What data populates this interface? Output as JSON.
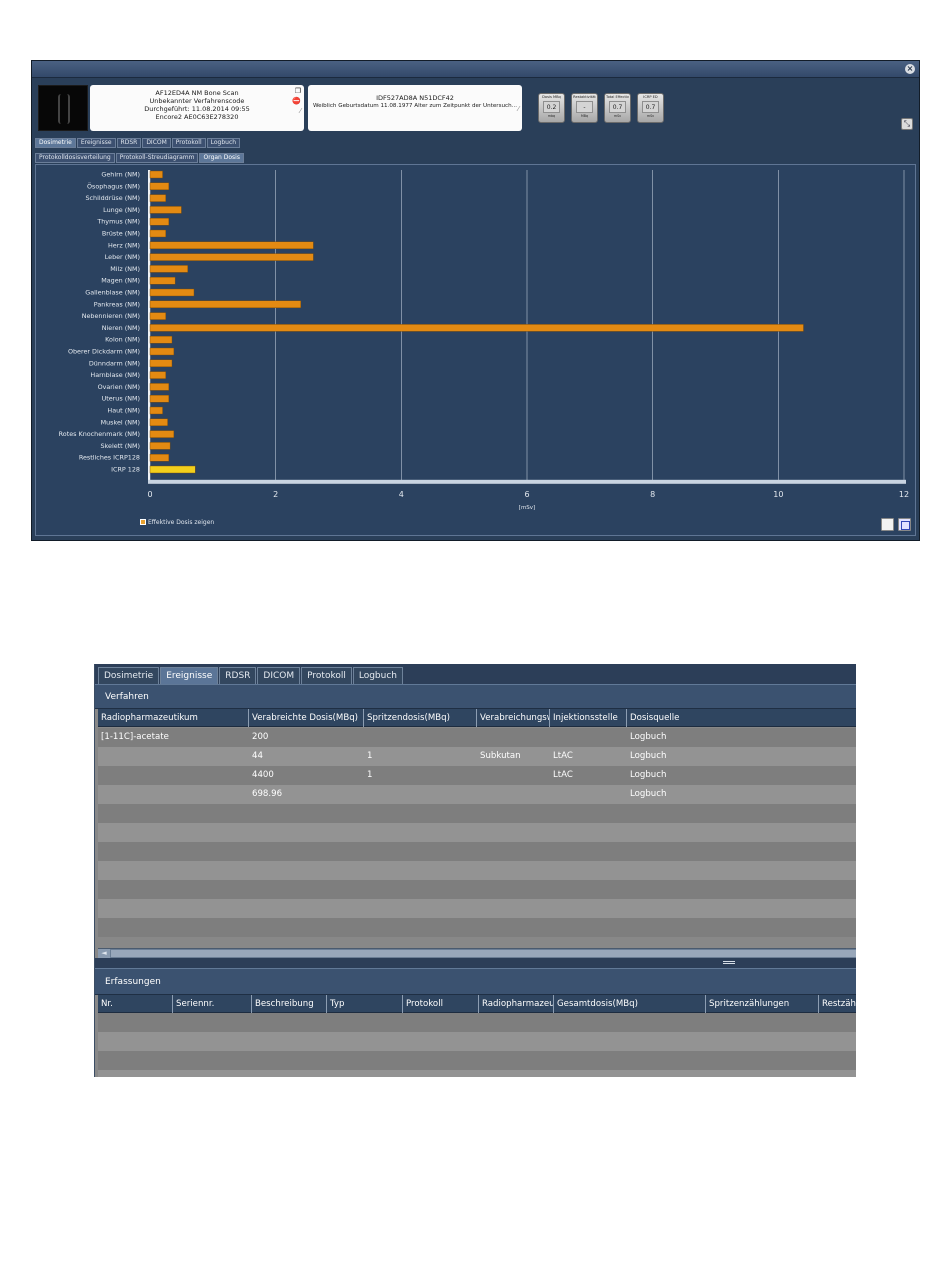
{
  "app": {
    "close_glyph": "×",
    "expand_glyph": "⤡"
  },
  "study": {
    "id_line": "AF12ED4A  NM  Bone Scan",
    "procedure_code": "Unbekannter Verfahrenscode",
    "performed": "Durchgeführt: 11.08.2014 09:55",
    "device": "Encore2 AE0C63E278320",
    "icons": [
      "page-icon",
      "stop-icon",
      "paperclip-icon"
    ]
  },
  "patient": {
    "id_line": "IDF527AD8A  N51DCF42",
    "details": "Weiblich  Geburtsdatum 11.08.1977  Alter zum Zeitpunkt der Untersuch...",
    "icon": "paperclip-icon"
  },
  "metrics": [
    {
      "label": "Dosis MBq",
      "value": "0.2",
      "unit": "mbq"
    },
    {
      "label": "Restaktivität",
      "value": "-",
      "unit": "MBq"
    },
    {
      "label": "Total Effectiv",
      "value": "0.7",
      "unit": "mSv"
    },
    {
      "label": "ICRP ED",
      "value": "0.7",
      "unit": "mSv"
    }
  ],
  "tabs": [
    "Dosimetrie",
    "Ereignisse",
    "RDSR",
    "DICOM",
    "Protokoll",
    "Logbuch"
  ],
  "tabs_active_1": 0,
  "subtabs": [
    "Protokolldosisverteilung",
    "Protokoll-Streudiagramm",
    "Organ Dosis"
  ],
  "subtabs_active": 2,
  "effective_dose_label": "Effektive Dosis zeigen",
  "chart_data": {
    "type": "bar",
    "orientation": "horizontal",
    "categories": [
      "Gehirn (NM)",
      "Ösophagus (NM)",
      "Schilddrüse (NM)",
      "Lunge (NM)",
      "Thymus (NM)",
      "Brüste (NM)",
      "Herz (NM)",
      "Leber (NM)",
      "Milz (NM)",
      "Magen (NM)",
      "Gallenblase (NM)",
      "Pankreas (NM)",
      "Nebennieren (NM)",
      "Nieren (NM)",
      "Kolon (NM)",
      "Oberer Dickdarm (NM)",
      "Dünndarm (NM)",
      "Harnblase (NM)",
      "Ovarien (NM)",
      "Uterus (NM)",
      "Haut (NM)",
      "Muskel (NM)",
      "Rotes Knochenmark (NM)",
      "Skelett (NM)",
      "Restliches ICRP128",
      "ICRP 128"
    ],
    "values": [
      0.2,
      0.3,
      0.25,
      0.5,
      0.3,
      0.25,
      2.6,
      2.6,
      0.6,
      0.4,
      0.7,
      2.4,
      0.25,
      10.4,
      0.35,
      0.38,
      0.35,
      0.25,
      0.3,
      0.3,
      0.2,
      0.28,
      0.38,
      0.32,
      0.3,
      0.72
    ],
    "highlight_index": 25,
    "xlim": [
      0,
      12
    ],
    "xticks": [
      0,
      2,
      4,
      6,
      8,
      10,
      12
    ],
    "xlabel": "[mSv]",
    "grid": true,
    "colors": {
      "bar": "#e38a12",
      "highlight": "#f2cf1c",
      "grid": "#b9c6d6"
    }
  },
  "verfahren": {
    "title": "Verfahren",
    "columns": [
      "Radiopharmazeutikum",
      "Verabreichte Dosis(MBq)",
      "Spritzendosis(MBq)",
      "Verabreichungsw",
      "Injektionsstelle",
      "Dosisquelle"
    ],
    "rows": [
      [
        "[1-11C]-acetate",
        "200",
        "",
        "",
        "",
        "Logbuch"
      ],
      [
        "",
        "44",
        "1",
        "Subkutan",
        "LtAC",
        "Logbuch"
      ],
      [
        "",
        "4400",
        "1",
        "",
        "LtAC",
        "Logbuch"
      ],
      [
        "",
        "698.96",
        "",
        "",
        "",
        "Logbuch"
      ],
      [
        "",
        "",
        "",
        "",
        "",
        ""
      ],
      [
        "",
        "",
        "",
        "",
        "",
        ""
      ],
      [
        "",
        "",
        "",
        "",
        "",
        ""
      ],
      [
        "",
        "",
        "",
        "",
        "",
        ""
      ],
      [
        "",
        "",
        "",
        "",
        "",
        ""
      ],
      [
        "",
        "",
        "",
        "",
        "",
        ""
      ],
      [
        "",
        "",
        "",
        "",
        "",
        ""
      ]
    ]
  },
  "erfassungen": {
    "title": "Erfassungen",
    "columns": [
      "Nr.",
      "Seriennr.",
      "Beschreibung",
      "Typ",
      "Protokoll",
      "Radiopharmazeu",
      "Gesamtdosis(MBq)",
      "Spritzenzählungen",
      "Restzähl"
    ],
    "rows": [
      [
        "",
        "",
        "",
        "",
        "",
        "",
        "",
        "",
        ""
      ],
      [
        "",
        "",
        "",
        "",
        "",
        "",
        "",
        "",
        ""
      ],
      [
        "",
        "",
        "",
        "",
        "",
        "",
        "",
        "",
        ""
      ],
      [
        "",
        "",
        "",
        "",
        "",
        "",
        "",
        "",
        ""
      ]
    ]
  },
  "tabs_active_2": 1,
  "scroll_left_glyph": "◄"
}
